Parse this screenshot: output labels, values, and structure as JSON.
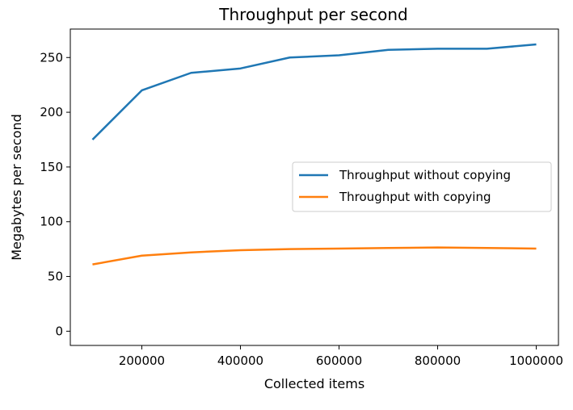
{
  "chart_data": {
    "type": "line",
    "title": "Throughput per second",
    "xlabel": "Collected items",
    "ylabel": "Megabytes per second",
    "x": [
      100000,
      200000,
      300000,
      400000,
      500000,
      600000,
      700000,
      800000,
      900000,
      1000000
    ],
    "xlim": [
      55000,
      1045000
    ],
    "ylim": [
      -13,
      276
    ],
    "xticks": [
      200000,
      400000,
      600000,
      800000,
      1000000
    ],
    "xtick_labels": [
      "200000",
      "400000",
      "600000",
      "800000",
      "1000000"
    ],
    "yticks": [
      0,
      50,
      100,
      150,
      200,
      250
    ],
    "ytick_labels": [
      "0",
      "50",
      "100",
      "150",
      "200",
      "250"
    ],
    "grid": false,
    "legend_position": "center-right",
    "series": [
      {
        "name": "Throughput without copying",
        "color": "#1f77b4",
        "values": [
          175,
          220,
          236,
          240,
          250,
          252,
          257,
          258,
          258,
          262
        ]
      },
      {
        "name": "Throughput with copying",
        "color": "#ff7f0e",
        "values": [
          61,
          69,
          72,
          74,
          75,
          75.5,
          76,
          76.5,
          76,
          75.5
        ]
      }
    ]
  }
}
